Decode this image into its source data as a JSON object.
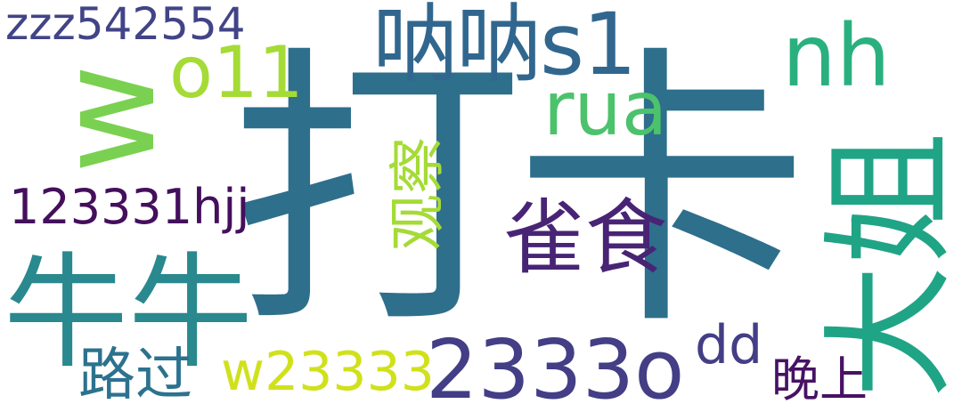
{
  "words": [
    {
      "text": "打卡",
      "color": "#2e6f8c"
    },
    {
      "text": "牛牛",
      "color": "#29898e"
    },
    {
      "text": "w",
      "color": "#7ad151"
    },
    {
      "text": "zzz542554",
      "color": "#414487"
    },
    {
      "text": "o11",
      "color": "#a5db36"
    },
    {
      "text": "呐呐s1",
      "color": "#31678e"
    },
    {
      "text": "nh",
      "color": "#2ab07f"
    },
    {
      "text": "rua",
      "color": "#4cc26c"
    },
    {
      "text": "观察",
      "color": "#a5db36"
    },
    {
      "text": "123331hjj",
      "color": "#440f5c"
    },
    {
      "text": "雀食",
      "color": "#482475"
    },
    {
      "text": "大姐",
      "color": "#20a486"
    },
    {
      "text": "dd",
      "color": "#433e85"
    },
    {
      "text": "2333o",
      "color": "#433e85"
    },
    {
      "text": "w23333",
      "color": "#d0e11c"
    },
    {
      "text": "路过",
      "color": "#2c728e"
    },
    {
      "text": "晚上",
      "color": "#471164"
    }
  ]
}
